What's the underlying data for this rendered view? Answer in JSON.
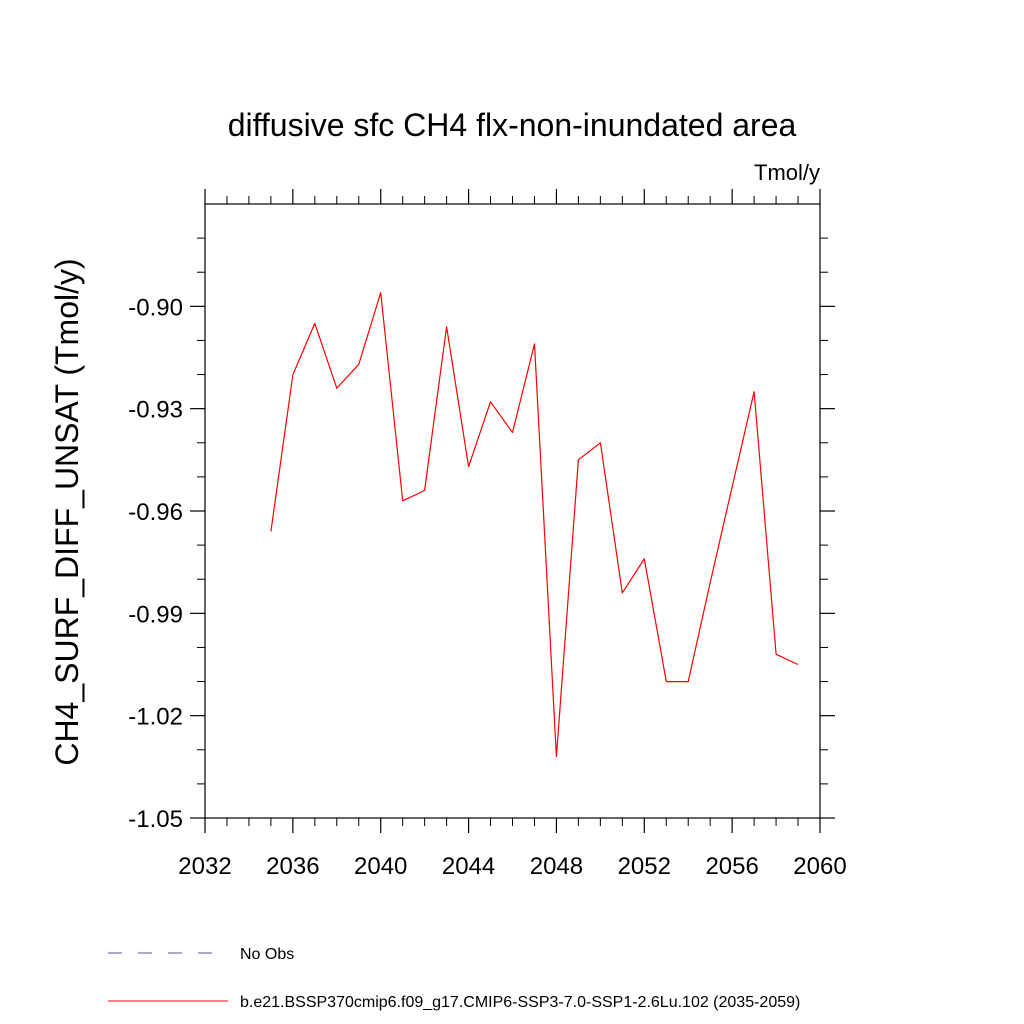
{
  "chart_data": {
    "type": "line",
    "title": "diffusive sfc CH4 flx-non-inundated area",
    "units": "Tmol/y",
    "xlabel": "",
    "ylabel": "CH4_SURF_DIFF_UNSAT  (Tmol/y)",
    "xlim": [
      2032,
      2060
    ],
    "ylim": [
      -1.05,
      -0.87
    ],
    "xticks": [
      2032,
      2036,
      2040,
      2044,
      2048,
      2052,
      2056,
      2060
    ],
    "xtick_labels": [
      "2032",
      "2036",
      "2040",
      "2044",
      "2048",
      "2052",
      "2056",
      "2060"
    ],
    "yticks": [
      -1.05,
      -1.02,
      -0.99,
      -0.96,
      -0.93,
      -0.9
    ],
    "ytick_labels": [
      "-1.05",
      "-1.02",
      "-0.99",
      "-0.96",
      "-0.93",
      "-0.90"
    ],
    "series": [
      {
        "name": "b.e21.BSSP370cmip6.f09_g17.CMIP6-SSP3-7.0-SSP1-2.6Lu.102 (2035-2059)",
        "color": "#ff0000",
        "x": [
          2035,
          2036,
          2037,
          2038,
          2039,
          2040,
          2041,
          2042,
          2043,
          2044,
          2045,
          2046,
          2047,
          2048,
          2049,
          2050,
          2051,
          2052,
          2053,
          2054,
          2055,
          2056,
          2057,
          2058,
          2059
        ],
        "y": [
          -0.966,
          -0.92,
          -0.905,
          -0.924,
          -0.917,
          -0.896,
          -0.957,
          -0.954,
          -0.906,
          -0.947,
          -0.928,
          -0.937,
          -0.911,
          -1.032,
          -0.945,
          -0.94,
          -0.984,
          -0.974,
          -1.01,
          -1.01,
          -0.981,
          -0.953,
          -0.925,
          -1.002,
          -1.005
        ]
      }
    ],
    "legend": {
      "placement": "bottom-left",
      "entries": [
        {
          "label": "No Obs",
          "color": "#5a4fa0",
          "style": "dashed"
        },
        {
          "label": "b.e21.BSSP370cmip6.f09_g17.CMIP6-SSP3-7.0-SSP1-2.6Lu.102 (2035-2059)",
          "color": "#ff0000",
          "style": "solid"
        }
      ]
    }
  }
}
